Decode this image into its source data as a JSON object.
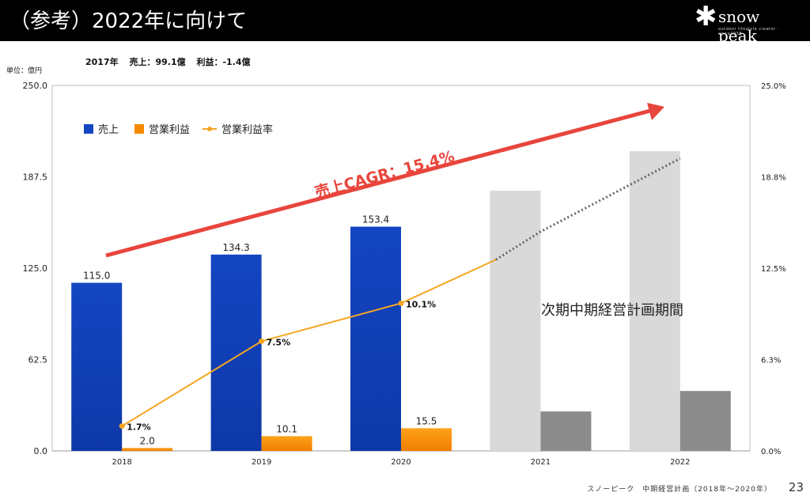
{
  "header": {
    "title": "（参考）2022年に向けて",
    "logo_name": "snow peak",
    "logo_tagline": "outdoor lifestyle creator · since1958"
  },
  "unit_label": "単位：億円",
  "note": {
    "year": "2017年",
    "sales": "売上：99.1億",
    "profit": "利益：-1.4億"
  },
  "chart_data": {
    "type": "bar",
    "categories": [
      "2018",
      "2019",
      "2020",
      "2021",
      "2022"
    ],
    "ylim": [
      0,
      250
    ],
    "y2lim": [
      0,
      25
    ],
    "yticks": [
      "0.0",
      "62.5",
      "125.0",
      "187.5",
      "250.0"
    ],
    "y2ticks": [
      "0.0%",
      "6.3%",
      "12.5%",
      "18.8%",
      "25.0%"
    ],
    "legend": [
      "売上",
      "営業利益",
      "営業利益率"
    ],
    "legend_position": "top-left",
    "series": [
      {
        "name": "売上",
        "values": [
          115.0,
          134.3,
          153.4,
          178.0,
          205.0
        ],
        "labels": [
          "115.0",
          "134.3",
          "153.4",
          "",
          ""
        ]
      },
      {
        "name": "営業利益",
        "values": [
          2.0,
          10.1,
          15.5,
          27.0,
          41.0
        ],
        "labels": [
          "2.0",
          "10.1",
          "15.5",
          "",
          ""
        ]
      },
      {
        "name": "営業利益率",
        "values": [
          1.7,
          7.5,
          10.1,
          15.0,
          20.0
        ],
        "labels": [
          "1.7%",
          "7.5%",
          "10.1%",
          "",
          ""
        ]
      }
    ],
    "cagr_label": "売上CAGR：15.4%",
    "period_label": "次期中期経営計画期間",
    "colors": {
      "sales": "#1446c2",
      "profit": "#f58a00",
      "rate": "#f5a623",
      "plan_sales": "#d9d9d9",
      "plan_profit": "#8c8c8c",
      "arrow": "#e8453c",
      "dotted": "#666666"
    }
  },
  "footer": {
    "text": "スノーピーク　中期経営計画（2018年～2020年）",
    "page": "23"
  }
}
